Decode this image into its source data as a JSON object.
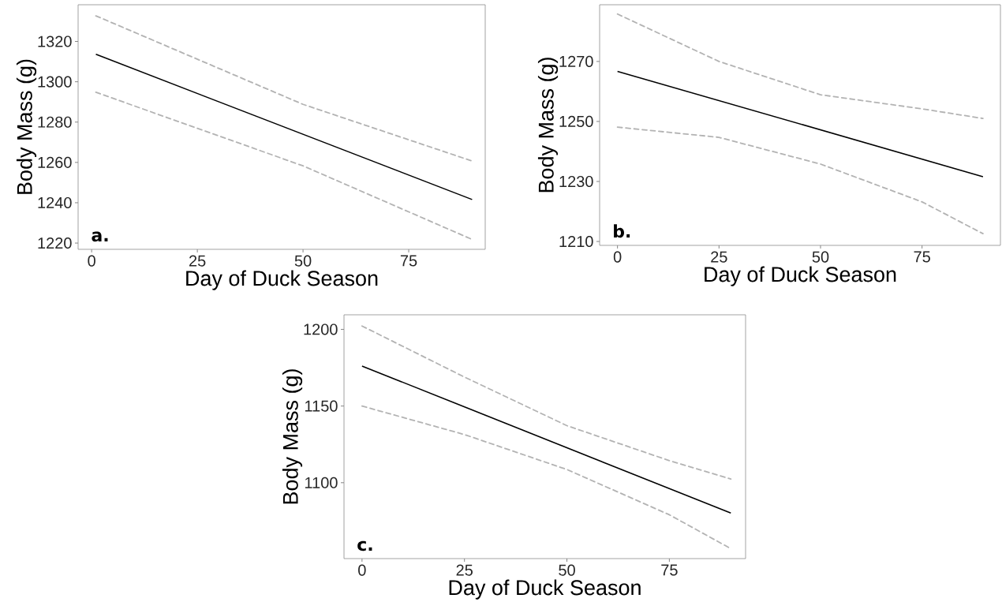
{
  "chart_data": [
    {
      "type": "line",
      "xlabel": "Day of Duck Season",
      "ylabel": "Body Mass (g)",
      "annotations": [
        "a."
      ],
      "xlim": [
        -3.2,
        93.1
      ],
      "ylim": [
        1216.9,
        1338.2
      ],
      "xticks": [
        0,
        25,
        50,
        75
      ],
      "yticks": [
        1220,
        1240,
        1260,
        1280,
        1300,
        1320
      ],
      "grid": false,
      "marker": "none",
      "series": [
        {
          "color": "#000000",
          "line_style": "solid",
          "x": [
            1,
            90
          ],
          "values": [
            1313.6,
            1241.6
          ]
        },
        {
          "color": "#b3b3b3",
          "line_style": "dashed",
          "x": [
            1,
            50,
            90
          ],
          "values": [
            1332.7,
            1288.8,
            1260.7
          ]
        },
        {
          "color": "#b3b3b3",
          "line_style": "dashed",
          "x": [
            1,
            50,
            90
          ],
          "values": [
            1294.8,
            1258.3,
            1221.8
          ]
        }
      ]
    },
    {
      "type": "line",
      "xlabel": "Day of Duck Season",
      "ylabel": "Body Mass (g)",
      "annotations": [
        "b."
      ],
      "xlim": [
        -4.4,
        94.3
      ],
      "ylim": [
        1208.7,
        1288.9
      ],
      "xticks": [
        0,
        25,
        50,
        75
      ],
      "yticks": [
        1210,
        1230,
        1250,
        1270
      ],
      "grid": false,
      "marker": "none",
      "series": [
        {
          "color": "#000000",
          "line_style": "solid",
          "x": [
            0,
            90
          ],
          "values": [
            1266.7,
            1231.6
          ]
        },
        {
          "color": "#b3b3b3",
          "line_style": "dashed",
          "x": [
            0,
            25,
            50,
            75,
            90
          ],
          "values": [
            1285.8,
            1270,
            1258.9,
            1254.2,
            1251
          ]
        },
        {
          "color": "#b3b3b3",
          "line_style": "dashed",
          "x": [
            0,
            25,
            50,
            75,
            90
          ],
          "values": [
            1248.1,
            1244.7,
            1235.8,
            1223.2,
            1212.6
          ]
        }
      ]
    },
    {
      "type": "line",
      "xlabel": "Day of Duck Season",
      "ylabel": "Body Mass (g)",
      "annotations": [
        "c."
      ],
      "xlim": [
        -4.4,
        93.6
      ],
      "ylim": [
        1050.5,
        1209.5
      ],
      "xticks": [
        0,
        25,
        50,
        75
      ],
      "yticks": [
        1100,
        1150,
        1200
      ],
      "grid": false,
      "marker": "none",
      "series": [
        {
          "color": "#000000",
          "line_style": "solid",
          "x": [
            0,
            90
          ],
          "values": [
            1176.1,
            1080.2
          ]
        },
        {
          "color": "#b3b3b3",
          "line_style": "dashed",
          "x": [
            0,
            25,
            50,
            75,
            90
          ],
          "values": [
            1202.2,
            1168.9,
            1137.2,
            1114.4,
            1102.4
          ]
        },
        {
          "color": "#b3b3b3",
          "line_style": "dashed",
          "x": [
            0,
            25,
            50,
            75,
            90
          ],
          "values": [
            1150,
            1131.4,
            1108.6,
            1079.1,
            1057
          ]
        }
      ]
    }
  ]
}
